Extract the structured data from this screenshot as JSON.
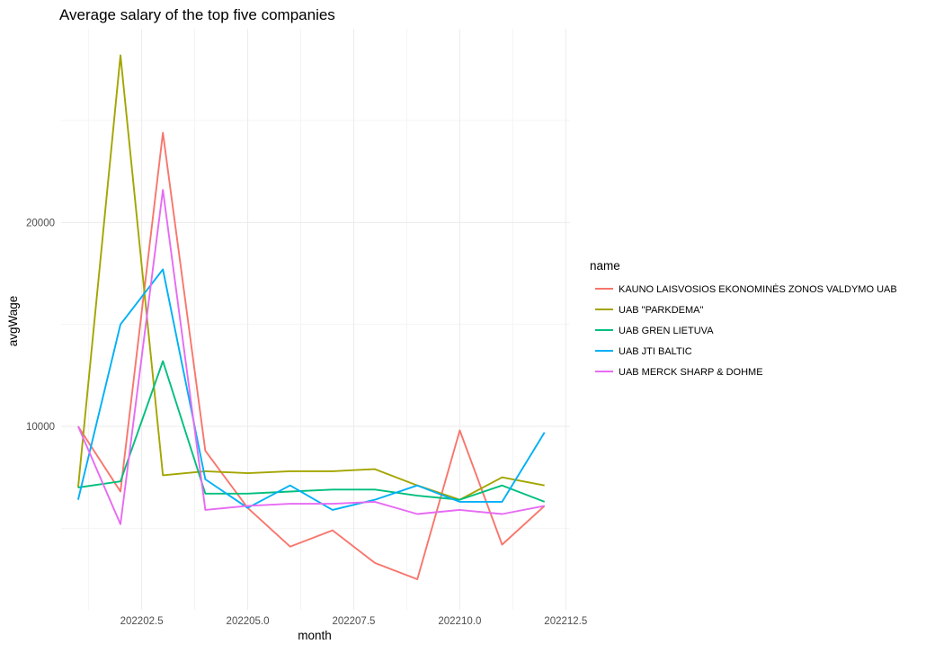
{
  "chart_data": {
    "type": "line",
    "title": "Average salary of the top five companies",
    "xlabel": "month",
    "ylabel": "avgWage",
    "x": [
      202201,
      202202,
      202203,
      202204,
      202205,
      202206,
      202207,
      202208,
      202209,
      202210,
      202211,
      202212
    ],
    "xlim": [
      202200.6,
      202212.6
    ],
    "ylim": [
      1000,
      29500
    ],
    "x_ticks": [
      202202.5,
      202205.0,
      202207.5,
      202210.0,
      202212.5
    ],
    "x_tick_labels": [
      "202202.5",
      "202205.0",
      "202207.5",
      "202210.0",
      "202212.5"
    ],
    "y_ticks": [
      10000,
      20000
    ],
    "y_tick_labels": [
      "10000",
      "20000"
    ],
    "y_minor_ticks": [
      5000,
      15000,
      25000
    ],
    "grid": true,
    "legend": {
      "title": "name",
      "placement": "right"
    },
    "series": [
      {
        "name": "KAUNO LAISVOSIOS EKONOMINĖS ZONOS VALDYMO UAB",
        "color": "#F8766D",
        "values": [
          10000,
          6800,
          24400,
          8800,
          6000,
          4100,
          4900,
          3300,
          2500,
          9800,
          4200,
          6100
        ]
      },
      {
        "name": "UAB \"PARKDEMA\"",
        "color": "#A3A500",
        "values": [
          7000,
          28200,
          7600,
          7800,
          7700,
          7800,
          7800,
          7900,
          7100,
          6400,
          7500,
          7100
        ]
      },
      {
        "name": "UAB GREN LIETUVA",
        "color": "#00BF7D",
        "values": [
          7000,
          7300,
          13200,
          6700,
          6700,
          6800,
          6900,
          6900,
          6600,
          6400,
          7100,
          6300
        ]
      },
      {
        "name": "UAB JTI BALTIC",
        "color": "#00B0F6",
        "values": [
          6400,
          15000,
          17700,
          7400,
          6000,
          7100,
          5900,
          6400,
          7100,
          6300,
          6300,
          9700
        ]
      },
      {
        "name": "UAB MERCK SHARP & DOHME",
        "color": "#E76BF3",
        "values": [
          10000,
          5200,
          21600,
          5900,
          6100,
          6200,
          6200,
          6300,
          5700,
          5900,
          5700,
          6100
        ]
      }
    ]
  }
}
